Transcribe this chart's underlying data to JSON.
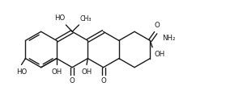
{
  "bg_color": "#ffffff",
  "line_color": "#1a1a1a",
  "line_width": 1.0,
  "font_size": 6.2,
  "xlim": [
    -0.5,
    9.5
  ],
  "ylim": [
    0.5,
    4.2
  ]
}
